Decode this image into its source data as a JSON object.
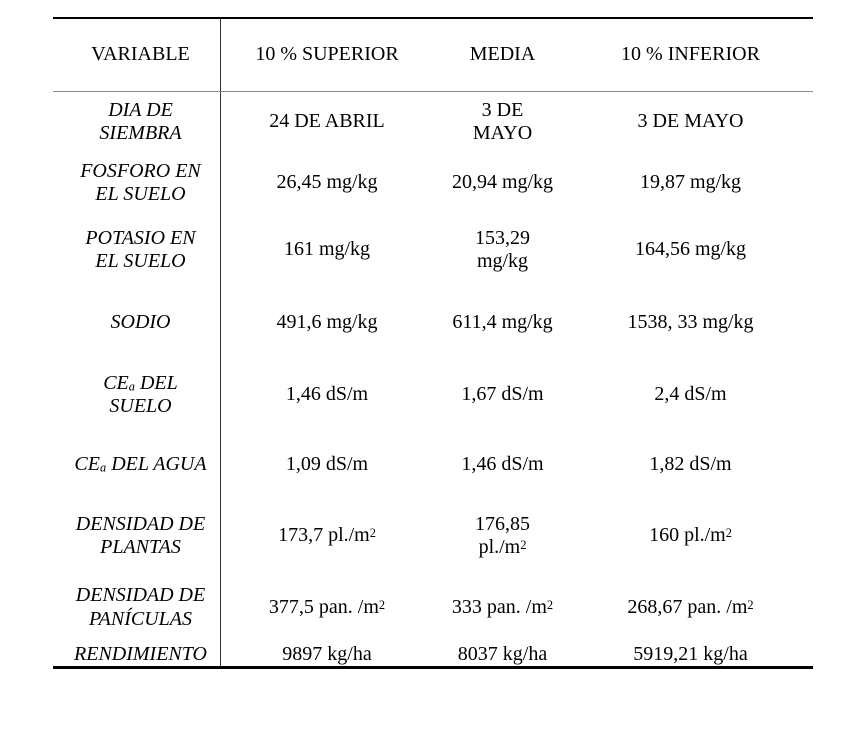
{
  "table": {
    "headers": [
      "VARIABLE",
      "10 % SUPERIOR",
      "MEDIA",
      "10 % INFERIOR"
    ],
    "rows": [
      {
        "variable": "DIA DE\nSIEMBRA",
        "values": [
          "24 DE ABRIL",
          "3 DE\nMAYO",
          "3 DE MAYO"
        ]
      },
      {
        "variable": "FOSFORO EN\nEL SUELO",
        "values": [
          "26,45 mg/kg",
          "20,94 mg/kg",
          "19,87 mg/kg"
        ]
      },
      {
        "variable": "POTASIO EN\nEL SUELO",
        "values": [
          "161 mg/kg",
          "153,29\nmg/kg",
          "164,56 mg/kg"
        ]
      },
      {
        "variable": "SODIO",
        "values": [
          "491,6 mg/kg",
          "611,4 mg/kg",
          "1538, 33 mg/kg"
        ]
      },
      {
        "variable": "CE_{a} DEL\nSUELO",
        "values": [
          "1,46 dS/m",
          "1,67 dS/m",
          "2,4 dS/m"
        ]
      },
      {
        "variable": "CE_{a} DEL AGUA",
        "values": [
          "1,09 dS/m",
          "1,46 dS/m",
          "1,82 dS/m"
        ]
      },
      {
        "variable": "DENSIDAD DE\nPLANTAS",
        "values": [
          "173,7 pl./m^{2}",
          "176,85\npl./m^{2}",
          "160 pl./m^{2}"
        ]
      },
      {
        "variable": "DENSIDAD DE\nPANÍCULAS",
        "values": [
          "377,5 pan. /m^{2}",
          "333 pan. /m^{2}",
          "268,67 pan. /m^{2}"
        ]
      },
      {
        "variable": "RENDIMIENTO",
        "values": [
          "9897 kg/ha",
          "8037 kg/ha",
          "5919,21 kg/ha"
        ]
      }
    ],
    "colors": {
      "text": "#000000",
      "outer_border": "#000000",
      "header_rule": "#8a8a8a",
      "column_divider": "#2f2f2f",
      "background": "#ffffff"
    }
  }
}
